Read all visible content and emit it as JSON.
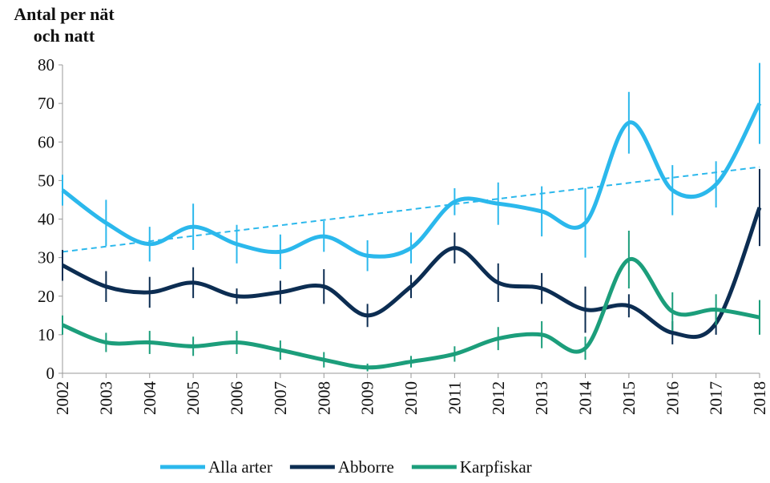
{
  "chart_data": {
    "type": "line",
    "y_label": "Antal per nät och natt",
    "categories": [
      "2002",
      "2003",
      "2004",
      "2005",
      "2006",
      "2007",
      "2008",
      "2009",
      "2010",
      "2011",
      "2012",
      "2013",
      "2014",
      "2015",
      "2016",
      "2017",
      "2018"
    ],
    "ylim": [
      0,
      80
    ],
    "yticks": [
      0,
      10,
      20,
      30,
      40,
      50,
      60,
      70,
      80
    ],
    "smooth": true,
    "series": [
      {
        "name": "Alla arter",
        "color": "#2bb8ec",
        "values": [
          47.5,
          39,
          33.5,
          38,
          33.5,
          31.5,
          35.5,
          30.5,
          32.5,
          44.5,
          44,
          42,
          39,
          65,
          47.5,
          49,
          70
        ],
        "errors": [
          4,
          6,
          4.5,
          6,
          5,
          4.5,
          4,
          4,
          4,
          3.5,
          5.5,
          6.5,
          9,
          8,
          6.5,
          6,
          10.5
        ]
      },
      {
        "name": "Abborre",
        "color": "#0c2d52",
        "values": [
          28,
          22.5,
          21,
          23.5,
          20,
          21,
          22.5,
          15,
          22.5,
          32.5,
          23.5,
          22,
          16.5,
          17.5,
          10.5,
          13,
          43
        ],
        "errors": [
          4,
          4,
          4,
          4,
          2,
          3,
          4.5,
          3,
          3,
          4,
          5,
          4,
          6,
          3,
          3,
          3,
          10
        ]
      },
      {
        "name": "Karpfiskar",
        "color": "#1c9e7b",
        "values": [
          12.5,
          8,
          8,
          7,
          8,
          6,
          3.5,
          1.5,
          3,
          5,
          9,
          10,
          6.5,
          29.5,
          16,
          16.5,
          14.5
        ],
        "errors": [
          2.5,
          2.5,
          3,
          2.5,
          3,
          2.5,
          2,
          1,
          1.5,
          2,
          3,
          3.5,
          3,
          7.5,
          5,
          4,
          4.5
        ]
      }
    ],
    "trend": {
      "color": "#2bb8ec",
      "values": [
        31.5,
        53.5
      ]
    }
  }
}
